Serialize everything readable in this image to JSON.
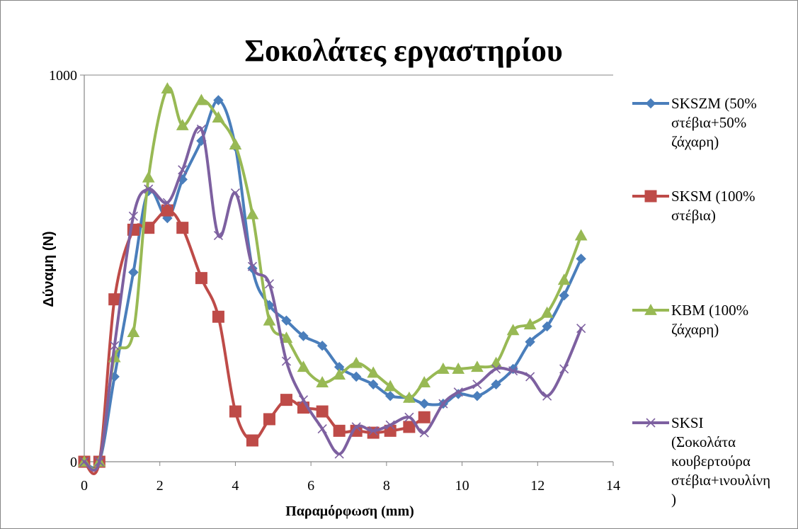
{
  "chart_data": {
    "type": "line",
    "title": "Σοκολάτες εργαστηρίου",
    "xlabel": "Παραμόρφωση (mm)",
    "ylabel": "Δύναμη (N)",
    "xlim": [
      0,
      14
    ],
    "ylim": [
      0,
      1000
    ],
    "xticks": [
      0,
      2,
      4,
      6,
      8,
      10,
      12,
      14
    ],
    "yticks": [
      0,
      1000
    ],
    "grid": false,
    "legend_position": "right",
    "series": [
      {
        "name": "SKSZM (50% στέβια+50% ζάχαρη)",
        "legend_lines": [
          "SKSZM (50%",
          "στέβια+50%",
          "ζάχαρη)"
        ],
        "color": "#4a7ebb",
        "marker": "diamond",
        "x": [
          0,
          0.4,
          0.8,
          1.3,
          1.7,
          2.2,
          2.6,
          3.1,
          3.55,
          4.0,
          4.45,
          4.9,
          5.35,
          5.8,
          6.3,
          6.75,
          7.2,
          7.65,
          8.1,
          8.6,
          9.0,
          9.5,
          9.9,
          10.4,
          10.9,
          11.35,
          11.8,
          12.25,
          12.7,
          13.15
        ],
        "y": [
          0,
          0,
          220,
          490,
          700,
          630,
          730,
          830,
          935,
          815,
          500,
          405,
          365,
          325,
          300,
          245,
          220,
          200,
          170,
          165,
          150,
          150,
          175,
          170,
          200,
          240,
          310,
          350,
          430,
          525
        ]
      },
      {
        "name": "SKSM (100% στέβια)",
        "legend_lines": [
          "SKSM (100%",
          "στέβια)"
        ],
        "color": "#be4b48",
        "marker": "square",
        "x": [
          0,
          0.4,
          0.8,
          1.3,
          1.7,
          2.2,
          2.6,
          3.1,
          3.55,
          4.0,
          4.45,
          4.9,
          5.35,
          5.8,
          6.3,
          6.75,
          7.2,
          7.65,
          8.1,
          8.6,
          9.0
        ],
        "y": [
          0,
          0,
          420,
          600,
          605,
          650,
          605,
          475,
          375,
          130,
          55,
          110,
          160,
          140,
          130,
          80,
          80,
          75,
          80,
          90,
          115
        ]
      },
      {
        "name": "KBM (100% ζάχαρη)",
        "legend_lines": [
          "KBM (100%",
          "ζάχαρη)"
        ],
        "color": "#98b954",
        "marker": "triangle",
        "x": [
          0,
          0.4,
          0.8,
          1.3,
          1.7,
          2.2,
          2.6,
          3.1,
          3.55,
          4.0,
          4.45,
          4.9,
          5.35,
          5.8,
          6.3,
          6.75,
          7.2,
          7.65,
          8.1,
          8.6,
          9.0,
          9.5,
          9.9,
          10.4,
          10.9,
          11.35,
          11.8,
          12.25,
          12.7,
          13.15
        ],
        "y": [
          0,
          0,
          270,
          335,
          735,
          965,
          870,
          935,
          890,
          820,
          640,
          365,
          320,
          245,
          205,
          225,
          255,
          230,
          195,
          165,
          205,
          240,
          240,
          245,
          255,
          340,
          355,
          385,
          470,
          585
        ]
      },
      {
        "name": "SKSI (Σοκολάτα κουβερτούρα στέβια+ινουλίνη)",
        "legend_lines": [
          "SKSI",
          "(Σοκολάτα",
          "κουβερτούρα",
          "στέβια+ινουλίνη",
          ")"
        ],
        "color": "#7d60a0",
        "marker": "x",
        "x": [
          0,
          0.4,
          0.8,
          1.3,
          1.7,
          2.2,
          2.6,
          3.1,
          3.55,
          4.0,
          4.45,
          4.9,
          5.35,
          5.8,
          6.3,
          6.75,
          7.2,
          7.65,
          8.1,
          8.6,
          9.0,
          9.5,
          9.9,
          10.4,
          10.9,
          11.35,
          11.8,
          12.25,
          12.7,
          13.15
        ],
        "y": [
          0,
          0,
          300,
          635,
          705,
          670,
          755,
          860,
          585,
          695,
          505,
          460,
          260,
          160,
          85,
          20,
          90,
          80,
          95,
          115,
          75,
          150,
          180,
          200,
          240,
          235,
          220,
          170,
          240,
          345
        ]
      }
    ]
  }
}
